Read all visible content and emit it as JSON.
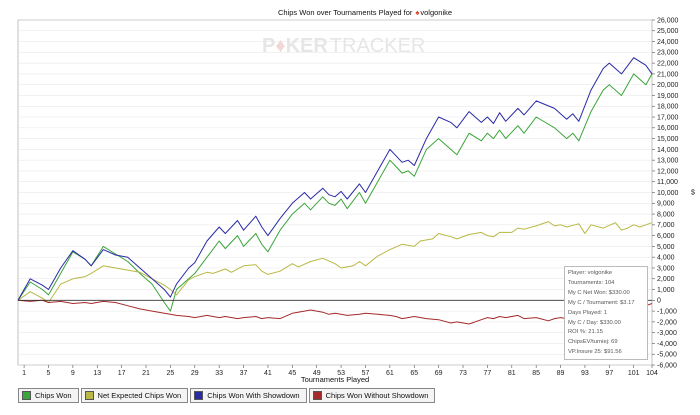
{
  "watermark": {
    "part1": "P",
    "part2": "KER",
    "part3": "TRACKER"
  },
  "title": {
    "prefix": "Chips Won over Tournaments Played for",
    "player": "volgonike"
  },
  "colors": {
    "chips_won": "#3aa53a",
    "net_expected": "#b8b844",
    "showdown": "#2a2aa6",
    "without_showdown": "#a52a2a",
    "zero_line": "#333333",
    "grid": "#dddddd"
  },
  "stats": {
    "player": "Player: volgonike",
    "tournaments": "Tournaments: 104",
    "net_won": "My C Net Won: $330.00",
    "per_tournament": "My C / Tournament: $3.17",
    "days_played": "Days Played: 1",
    "per_day": "My C / Day: $330.00",
    "roi": "ROI %: 21.15",
    "chips_ev": "ChipsEV/turniej: 69",
    "vp_insure": "VP.Insure 25: $91.56"
  },
  "legend": [
    {
      "label": "Chips Won",
      "color_key": "chips_won"
    },
    {
      "label": "Net Expected Chips Won",
      "color_key": "net_expected"
    },
    {
      "label": "Chips Won With Showdown",
      "color_key": "showdown"
    },
    {
      "label": "Chips Won Without Showdown",
      "color_key": "without_showdown"
    }
  ],
  "chart_data": {
    "type": "line",
    "title": "Chips Won over Tournaments Played for volgonike",
    "xlabel": "Tournaments Played",
    "ylabel": "",
    "xlim": [
      0,
      104
    ],
    "ylim": [
      -6000,
      26000
    ],
    "x_ticks": [
      1,
      5,
      9,
      13,
      17,
      21,
      25,
      29,
      33,
      37,
      41,
      45,
      49,
      53,
      57,
      61,
      65,
      69,
      73,
      77,
      81,
      85,
      89,
      93,
      97,
      101,
      104
    ],
    "y_ticks": [
      -6000,
      -5000,
      -4000,
      -3000,
      -2000,
      -1000,
      0,
      1000,
      2000,
      3000,
      4000,
      5000,
      6000,
      7000,
      8000,
      9000,
      10000,
      11000,
      12000,
      13000,
      14000,
      15000,
      16000,
      17000,
      18000,
      19000,
      20000,
      21000,
      22000,
      23000,
      24000,
      25000,
      26000
    ],
    "y_unit_mark": "$",
    "legend_position": "bottom",
    "grid": true,
    "series": [
      {
        "name": "Chips Won",
        "color_key": "chips_won",
        "points": [
          [
            0,
            0
          ],
          [
            2,
            1700
          ],
          [
            4,
            1000
          ],
          [
            5,
            500
          ],
          [
            7,
            2500
          ],
          [
            9,
            4500
          ],
          [
            11,
            3800
          ],
          [
            12,
            3200
          ],
          [
            14,
            5000
          ],
          [
            16,
            4300
          ],
          [
            18,
            3600
          ],
          [
            20,
            2500
          ],
          [
            22,
            1500
          ],
          [
            24,
            -200
          ],
          [
            25,
            -1000
          ],
          [
            26,
            1000
          ],
          [
            28,
            2000
          ],
          [
            29,
            2500
          ],
          [
            31,
            4000
          ],
          [
            33,
            5500
          ],
          [
            34,
            4800
          ],
          [
            36,
            6000
          ],
          [
            37,
            5000
          ],
          [
            39,
            6200
          ],
          [
            40,
            5200
          ],
          [
            41,
            4500
          ],
          [
            43,
            6500
          ],
          [
            45,
            8000
          ],
          [
            47,
            9000
          ],
          [
            48,
            8400
          ],
          [
            50,
            9600
          ],
          [
            51,
            9000
          ],
          [
            52,
            8800
          ],
          [
            53,
            9400
          ],
          [
            54,
            8500
          ],
          [
            56,
            10000
          ],
          [
            57,
            9000
          ],
          [
            59,
            11000
          ],
          [
            61,
            13000
          ],
          [
            62,
            12400
          ],
          [
            63,
            11800
          ],
          [
            64,
            12000
          ],
          [
            65,
            11500
          ],
          [
            67,
            14000
          ],
          [
            69,
            15000
          ],
          [
            71,
            14000
          ],
          [
            72,
            13500
          ],
          [
            74,
            15500
          ],
          [
            76,
            14800
          ],
          [
            77,
            15500
          ],
          [
            78,
            15000
          ],
          [
            79,
            15800
          ],
          [
            80,
            15000
          ],
          [
            82,
            16200
          ],
          [
            83,
            15500
          ],
          [
            85,
            17000
          ],
          [
            88,
            16000
          ],
          [
            90,
            15000
          ],
          [
            91,
            15500
          ],
          [
            92,
            14800
          ],
          [
            94,
            17500
          ],
          [
            96,
            19500
          ],
          [
            97,
            20000
          ],
          [
            98,
            19500
          ],
          [
            99,
            19000
          ],
          [
            101,
            21000
          ],
          [
            103,
            20000
          ],
          [
            104,
            21000
          ]
        ]
      },
      {
        "name": "Net Expected Chips Won",
        "color_key": "net_expected",
        "points": [
          [
            0,
            0
          ],
          [
            2,
            800
          ],
          [
            4,
            200
          ],
          [
            5,
            -200
          ],
          [
            7,
            1500
          ],
          [
            9,
            2000
          ],
          [
            11,
            2200
          ],
          [
            12,
            2500
          ],
          [
            14,
            3200
          ],
          [
            16,
            3000
          ],
          [
            18,
            2800
          ],
          [
            20,
            2600
          ],
          [
            22,
            2000
          ],
          [
            24,
            1400
          ],
          [
            25,
            1000
          ],
          [
            26,
            500
          ],
          [
            28,
            1900
          ],
          [
            29,
            2200
          ],
          [
            31,
            2600
          ],
          [
            32,
            2500
          ],
          [
            34,
            2900
          ],
          [
            35,
            2600
          ],
          [
            37,
            3200
          ],
          [
            39,
            3300
          ],
          [
            40,
            2700
          ],
          [
            41,
            2400
          ],
          [
            43,
            2700
          ],
          [
            45,
            3400
          ],
          [
            46,
            3100
          ],
          [
            48,
            3600
          ],
          [
            50,
            3900
          ],
          [
            52,
            3400
          ],
          [
            53,
            3000
          ],
          [
            55,
            3200
          ],
          [
            56,
            3600
          ],
          [
            57,
            3200
          ],
          [
            59,
            4100
          ],
          [
            60,
            4400
          ],
          [
            61,
            4700
          ],
          [
            63,
            5200
          ],
          [
            65,
            5000
          ],
          [
            66,
            5500
          ],
          [
            68,
            5700
          ],
          [
            69,
            6200
          ],
          [
            71,
            5900
          ],
          [
            72,
            5700
          ],
          [
            74,
            6100
          ],
          [
            76,
            6300
          ],
          [
            77,
            6000
          ],
          [
            78,
            5900
          ],
          [
            79,
            6300
          ],
          [
            81,
            6300
          ],
          [
            82,
            6700
          ],
          [
            83,
            6600
          ],
          [
            85,
            6900
          ],
          [
            87,
            7300
          ],
          [
            88,
            6900
          ],
          [
            89,
            7000
          ],
          [
            90,
            6800
          ],
          [
            92,
            7100
          ],
          [
            93,
            6200
          ],
          [
            94,
            7000
          ],
          [
            96,
            6700
          ],
          [
            98,
            7200
          ],
          [
            99,
            6500
          ],
          [
            100,
            6700
          ],
          [
            101,
            7000
          ],
          [
            102,
            6800
          ],
          [
            103,
            7000
          ],
          [
            104,
            7200
          ]
        ]
      },
      {
        "name": "Chips Won With Showdown",
        "color_key": "showdown",
        "points": [
          [
            0,
            0
          ],
          [
            2,
            2000
          ],
          [
            4,
            1400
          ],
          [
            5,
            1000
          ],
          [
            7,
            3000
          ],
          [
            9,
            4600
          ],
          [
            11,
            3800
          ],
          [
            12,
            3200
          ],
          [
            14,
            4700
          ],
          [
            16,
            4200
          ],
          [
            18,
            4000
          ],
          [
            20,
            3000
          ],
          [
            22,
            2000
          ],
          [
            24,
            1000
          ],
          [
            25,
            300
          ],
          [
            26,
            1500
          ],
          [
            28,
            3000
          ],
          [
            29,
            3500
          ],
          [
            31,
            5500
          ],
          [
            33,
            6800
          ],
          [
            34,
            6200
          ],
          [
            36,
            7400
          ],
          [
            37,
            6500
          ],
          [
            39,
            7800
          ],
          [
            40,
            6800
          ],
          [
            41,
            6000
          ],
          [
            43,
            7600
          ],
          [
            45,
            9000
          ],
          [
            47,
            10000
          ],
          [
            48,
            9400
          ],
          [
            50,
            10400
          ],
          [
            51,
            9800
          ],
          [
            52,
            9600
          ],
          [
            53,
            10100
          ],
          [
            54,
            9400
          ],
          [
            56,
            10800
          ],
          [
            57,
            10000
          ],
          [
            59,
            12000
          ],
          [
            61,
            14000
          ],
          [
            62,
            13400
          ],
          [
            63,
            12800
          ],
          [
            64,
            13000
          ],
          [
            65,
            12500
          ],
          [
            67,
            15000
          ],
          [
            69,
            17000
          ],
          [
            71,
            16500
          ],
          [
            72,
            16000
          ],
          [
            74,
            17500
          ],
          [
            76,
            16500
          ],
          [
            77,
            17000
          ],
          [
            78,
            16400
          ],
          [
            79,
            17400
          ],
          [
            80,
            16600
          ],
          [
            82,
            17800
          ],
          [
            83,
            17200
          ],
          [
            85,
            18500
          ],
          [
            88,
            17800
          ],
          [
            90,
            16800
          ],
          [
            91,
            17300
          ],
          [
            92,
            16600
          ],
          [
            94,
            19500
          ],
          [
            96,
            21500
          ],
          [
            97,
            22000
          ],
          [
            98,
            21500
          ],
          [
            99,
            21000
          ],
          [
            101,
            22500
          ],
          [
            103,
            21800
          ],
          [
            104,
            21000
          ]
        ]
      },
      {
        "name": "Chips Won Without Showdown",
        "color_key": "without_showdown",
        "points": [
          [
            0,
            0
          ],
          [
            2,
            -100
          ],
          [
            4,
            0
          ],
          [
            5,
            -200
          ],
          [
            7,
            -100
          ],
          [
            9,
            -300
          ],
          [
            11,
            -200
          ],
          [
            12,
            -300
          ],
          [
            14,
            -100
          ],
          [
            16,
            -200
          ],
          [
            18,
            -500
          ],
          [
            20,
            -800
          ],
          [
            22,
            -1000
          ],
          [
            24,
            -1200
          ],
          [
            25,
            -1300
          ],
          [
            26,
            -1400
          ],
          [
            28,
            -1500
          ],
          [
            29,
            -1600
          ],
          [
            31,
            -1400
          ],
          [
            33,
            -1600
          ],
          [
            34,
            -1500
          ],
          [
            36,
            -1700
          ],
          [
            37,
            -1600
          ],
          [
            39,
            -1500
          ],
          [
            40,
            -1700
          ],
          [
            41,
            -1600
          ],
          [
            43,
            -1700
          ],
          [
            45,
            -1200
          ],
          [
            47,
            -1000
          ],
          [
            48,
            -900
          ],
          [
            50,
            -1100
          ],
          [
            51,
            -1300
          ],
          [
            52,
            -1200
          ],
          [
            53,
            -1300
          ],
          [
            54,
            -1400
          ],
          [
            56,
            -1300
          ],
          [
            57,
            -1200
          ],
          [
            59,
            -1300
          ],
          [
            61,
            -1400
          ],
          [
            62,
            -1500
          ],
          [
            63,
            -1700
          ],
          [
            64,
            -1600
          ],
          [
            65,
            -1500
          ],
          [
            67,
            -1700
          ],
          [
            69,
            -1800
          ],
          [
            71,
            -2100
          ],
          [
            72,
            -2000
          ],
          [
            74,
            -2200
          ],
          [
            76,
            -1800
          ],
          [
            77,
            -1600
          ],
          [
            78,
            -1700
          ],
          [
            79,
            -1500
          ],
          [
            80,
            -1600
          ],
          [
            82,
            -1400
          ],
          [
            83,
            -1700
          ],
          [
            85,
            -1600
          ],
          [
            87,
            -1900
          ],
          [
            88,
            -1700
          ],
          [
            89,
            -1600
          ],
          [
            90,
            -1700
          ],
          [
            92,
            -1500
          ],
          [
            93,
            -1300
          ],
          [
            94,
            -1600
          ],
          [
            96,
            -1400
          ],
          [
            98,
            -1200
          ],
          [
            99,
            -1000
          ],
          [
            100,
            -1100
          ],
          [
            101,
            -900
          ],
          [
            102,
            -700
          ],
          [
            103,
            -500
          ],
          [
            104,
            -300
          ]
        ]
      }
    ]
  }
}
